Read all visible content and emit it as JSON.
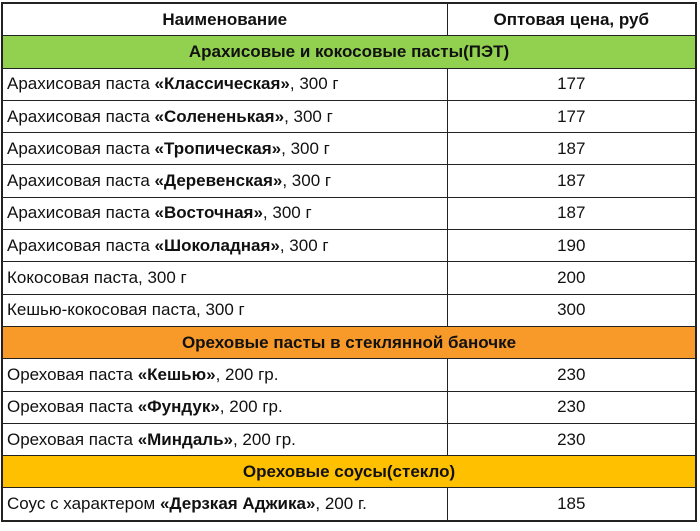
{
  "header": {
    "name": "Наименование",
    "price": "Оптовая цена, руб"
  },
  "colors": {
    "peanut_section": "#92d050",
    "glass_section": "#f79a2a",
    "sauce_section": "#ffc000"
  },
  "sections": [
    {
      "title": "Арахисовые и кокосовые пасты(ПЭТ)",
      "color": "#92d050",
      "items": [
        {
          "prefix": "Арахисовая паста ",
          "bold": "«Классическая»",
          "suffix": ", 300 г",
          "price": "177"
        },
        {
          "prefix": "Арахисовая паста ",
          "bold": "«Солененькая»",
          "suffix": ", 300 г",
          "price": "177"
        },
        {
          "prefix": "Арахисовая паста ",
          "bold": "«Тропическая»",
          "suffix": ", 300 г",
          "price": "187"
        },
        {
          "prefix": "Арахисовая паста ",
          "bold": "«Деревенская»",
          "suffix": ", 300 г",
          "price": "187"
        },
        {
          "prefix": "Арахисовая паста ",
          "bold": "«Восточная»",
          "suffix": ", 300 г",
          "price": "187"
        },
        {
          "prefix": "Арахисовая паста ",
          "bold": "«Шоколадная»",
          "suffix": ", 300 г",
          "price": "190"
        },
        {
          "prefix": "Кокосовая паста, 300 г",
          "bold": "",
          "suffix": "",
          "price": "200"
        },
        {
          "prefix": "Кешью-кокосовая паста, 300 г",
          "bold": "",
          "suffix": "",
          "price": "300"
        }
      ]
    },
    {
      "title": "Ореховые пасты в стеклянной баночке",
      "color": "#f79a2a",
      "items": [
        {
          "prefix": "Ореховая паста ",
          "bold": "«Кешью»",
          "suffix": ", 200 гр.",
          "price": "230"
        },
        {
          "prefix": "Ореховая паста ",
          "bold": "«Фундук»",
          "suffix": ", 200 гр.",
          "price": "230"
        },
        {
          "prefix": "Ореховая паста ",
          "bold": "«Миндаль»",
          "suffix": ", 200 гр.",
          "price": "230"
        }
      ]
    },
    {
      "title": "Ореховые соусы(стекло)",
      "color": "#ffc000",
      "items": [
        {
          "prefix": "Соус с характером ",
          "bold": "«Дерзкая Аджика»",
          "suffix": ", 200 г.",
          "price": "185"
        }
      ]
    }
  ]
}
